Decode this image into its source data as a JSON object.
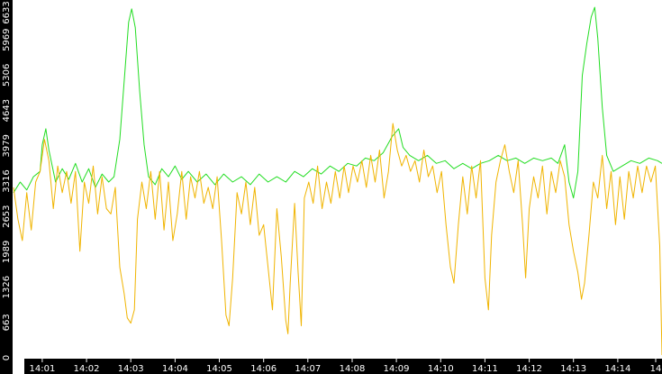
{
  "chart_data": {
    "type": "line",
    "title": "",
    "xlabel": "",
    "ylabel": "",
    "ylim": [
      0,
      6633
    ],
    "y_ticks": [
      "0",
      "663",
      "1326",
      "1989",
      "2653",
      "3316",
      "3979",
      "4643",
      "5306",
      "5969",
      "6633"
    ],
    "x_ticks": [
      "14:01",
      "14:02",
      "14:03",
      "14:04",
      "14:05",
      "14:06",
      "14:07",
      "14:08",
      "14:09",
      "14:10",
      "14:11",
      "14:12",
      "14:13",
      "14:14",
      "14"
    ],
    "xlim_minutes": [
      0.35,
      15.0
    ],
    "series": [
      {
        "color": "#22dd22",
        "points": [
          [
            0.35,
            3100
          ],
          [
            0.5,
            3300
          ],
          [
            0.65,
            3150
          ],
          [
            0.8,
            3400
          ],
          [
            0.95,
            3500
          ],
          [
            1.0,
            4000
          ],
          [
            1.08,
            4300
          ],
          [
            1.15,
            3900
          ],
          [
            1.3,
            3300
          ],
          [
            1.45,
            3550
          ],
          [
            1.6,
            3350
          ],
          [
            1.75,
            3650
          ],
          [
            1.9,
            3300
          ],
          [
            2.05,
            3550
          ],
          [
            2.2,
            3200
          ],
          [
            2.35,
            3450
          ],
          [
            2.5,
            3300
          ],
          [
            2.62,
            3400
          ],
          [
            2.75,
            4100
          ],
          [
            2.85,
            5200
          ],
          [
            2.95,
            6300
          ],
          [
            3.02,
            6550
          ],
          [
            3.1,
            6200
          ],
          [
            3.2,
            5000
          ],
          [
            3.3,
            4000
          ],
          [
            3.4,
            3400
          ],
          [
            3.55,
            3250
          ],
          [
            3.7,
            3550
          ],
          [
            3.85,
            3400
          ],
          [
            4.0,
            3600
          ],
          [
            4.15,
            3350
          ],
          [
            4.3,
            3500
          ],
          [
            4.5,
            3300
          ],
          [
            4.7,
            3450
          ],
          [
            4.9,
            3250
          ],
          [
            5.1,
            3450
          ],
          [
            5.3,
            3300
          ],
          [
            5.5,
            3400
          ],
          [
            5.7,
            3250
          ],
          [
            5.9,
            3450
          ],
          [
            6.1,
            3300
          ],
          [
            6.3,
            3400
          ],
          [
            6.5,
            3300
          ],
          [
            6.7,
            3500
          ],
          [
            6.9,
            3400
          ],
          [
            7.1,
            3550
          ],
          [
            7.3,
            3450
          ],
          [
            7.5,
            3600
          ],
          [
            7.7,
            3500
          ],
          [
            7.9,
            3650
          ],
          [
            8.1,
            3600
          ],
          [
            8.3,
            3750
          ],
          [
            8.5,
            3700
          ],
          [
            8.7,
            3850
          ],
          [
            8.9,
            4150
          ],
          [
            9.05,
            4300
          ],
          [
            9.15,
            3950
          ],
          [
            9.3,
            3800
          ],
          [
            9.5,
            3700
          ],
          [
            9.7,
            3800
          ],
          [
            9.9,
            3650
          ],
          [
            10.1,
            3700
          ],
          [
            10.3,
            3550
          ],
          [
            10.5,
            3650
          ],
          [
            10.7,
            3550
          ],
          [
            10.9,
            3650
          ],
          [
            11.1,
            3700
          ],
          [
            11.3,
            3800
          ],
          [
            11.5,
            3700
          ],
          [
            11.7,
            3750
          ],
          [
            11.9,
            3650
          ],
          [
            12.1,
            3750
          ],
          [
            12.3,
            3700
          ],
          [
            12.5,
            3750
          ],
          [
            12.65,
            3650
          ],
          [
            12.8,
            4000
          ],
          [
            12.9,
            3300
          ],
          [
            13.0,
            3000
          ],
          [
            13.1,
            3500
          ],
          [
            13.2,
            5300
          ],
          [
            13.3,
            5900
          ],
          [
            13.4,
            6400
          ],
          [
            13.48,
            6580
          ],
          [
            13.55,
            6000
          ],
          [
            13.65,
            4700
          ],
          [
            13.75,
            3800
          ],
          [
            13.9,
            3500
          ],
          [
            14.1,
            3600
          ],
          [
            14.3,
            3700
          ],
          [
            14.5,
            3650
          ],
          [
            14.7,
            3750
          ],
          [
            14.9,
            3700
          ],
          [
            15.0,
            3650
          ]
        ]
      },
      {
        "color": "#f0b400",
        "points": [
          [
            0.35,
            3200
          ],
          [
            0.45,
            2600
          ],
          [
            0.55,
            2200
          ],
          [
            0.65,
            3100
          ],
          [
            0.75,
            2400
          ],
          [
            0.85,
            3300
          ],
          [
            0.95,
            3500
          ],
          [
            1.05,
            4100
          ],
          [
            1.15,
            3700
          ],
          [
            1.25,
            2800
          ],
          [
            1.35,
            3600
          ],
          [
            1.45,
            3100
          ],
          [
            1.55,
            3500
          ],
          [
            1.65,
            2900
          ],
          [
            1.75,
            3500
          ],
          [
            1.85,
            2000
          ],
          [
            1.95,
            3300
          ],
          [
            2.05,
            2900
          ],
          [
            2.15,
            3600
          ],
          [
            2.25,
            2700
          ],
          [
            2.35,
            3400
          ],
          [
            2.45,
            2800
          ],
          [
            2.55,
            2700
          ],
          [
            2.65,
            3200
          ],
          [
            2.75,
            1700
          ],
          [
            2.85,
            1200
          ],
          [
            2.92,
            750
          ],
          [
            3.0,
            650
          ],
          [
            3.08,
            900
          ],
          [
            3.15,
            2600
          ],
          [
            3.25,
            3300
          ],
          [
            3.35,
            2800
          ],
          [
            3.45,
            3500
          ],
          [
            3.55,
            2600
          ],
          [
            3.65,
            3500
          ],
          [
            3.75,
            2400
          ],
          [
            3.85,
            3300
          ],
          [
            3.95,
            2200
          ],
          [
            4.05,
            2700
          ],
          [
            4.15,
            3500
          ],
          [
            4.25,
            2600
          ],
          [
            4.35,
            3400
          ],
          [
            4.45,
            3000
          ],
          [
            4.55,
            3500
          ],
          [
            4.65,
            2900
          ],
          [
            4.75,
            3200
          ],
          [
            4.85,
            2800
          ],
          [
            4.95,
            3400
          ],
          [
            5.05,
            2200
          ],
          [
            5.15,
            800
          ],
          [
            5.22,
            600
          ],
          [
            5.3,
            1500
          ],
          [
            5.4,
            3100
          ],
          [
            5.5,
            2700
          ],
          [
            5.6,
            3300
          ],
          [
            5.7,
            2500
          ],
          [
            5.8,
            3200
          ],
          [
            5.9,
            2300
          ],
          [
            6.0,
            2500
          ],
          [
            6.1,
            1700
          ],
          [
            6.2,
            900
          ],
          [
            6.3,
            2800
          ],
          [
            6.4,
            1900
          ],
          [
            6.5,
            700
          ],
          [
            6.55,
            450
          ],
          [
            6.6,
            1400
          ],
          [
            6.7,
            2900
          ],
          [
            6.78,
            1600
          ],
          [
            6.85,
            600
          ],
          [
            6.92,
            3000
          ],
          [
            7.02,
            3300
          ],
          [
            7.12,
            2900
          ],
          [
            7.22,
            3600
          ],
          [
            7.32,
            2800
          ],
          [
            7.42,
            3300
          ],
          [
            7.52,
            2900
          ],
          [
            7.62,
            3500
          ],
          [
            7.72,
            3000
          ],
          [
            7.82,
            3600
          ],
          [
            7.92,
            3100
          ],
          [
            8.02,
            3600
          ],
          [
            8.12,
            3300
          ],
          [
            8.22,
            3700
          ],
          [
            8.32,
            3200
          ],
          [
            8.42,
            3800
          ],
          [
            8.52,
            3300
          ],
          [
            8.62,
            3900
          ],
          [
            8.72,
            3000
          ],
          [
            8.82,
            3500
          ],
          [
            8.92,
            4400
          ],
          [
            9.02,
            3900
          ],
          [
            9.12,
            3600
          ],
          [
            9.22,
            3800
          ],
          [
            9.32,
            3500
          ],
          [
            9.42,
            3700
          ],
          [
            9.52,
            3300
          ],
          [
            9.62,
            3900
          ],
          [
            9.72,
            3400
          ],
          [
            9.82,
            3600
          ],
          [
            9.92,
            3100
          ],
          [
            10.02,
            3500
          ],
          [
            10.12,
            2500
          ],
          [
            10.22,
            1700
          ],
          [
            10.3,
            1400
          ],
          [
            10.4,
            2500
          ],
          [
            10.5,
            3400
          ],
          [
            10.6,
            2700
          ],
          [
            10.7,
            3600
          ],
          [
            10.8,
            3000
          ],
          [
            10.9,
            3700
          ],
          [
            11.0,
            1500
          ],
          [
            11.08,
            900
          ],
          [
            11.15,
            2300
          ],
          [
            11.25,
            3300
          ],
          [
            11.35,
            3700
          ],
          [
            11.45,
            4000
          ],
          [
            11.55,
            3500
          ],
          [
            11.65,
            3100
          ],
          [
            11.75,
            3700
          ],
          [
            11.85,
            2500
          ],
          [
            11.92,
            1500
          ],
          [
            12.0,
            2800
          ],
          [
            12.1,
            3400
          ],
          [
            12.2,
            3000
          ],
          [
            12.3,
            3600
          ],
          [
            12.4,
            2700
          ],
          [
            12.5,
            3500
          ],
          [
            12.6,
            3100
          ],
          [
            12.7,
            3700
          ],
          [
            12.8,
            3400
          ],
          [
            12.9,
            2500
          ],
          [
            13.0,
            2000
          ],
          [
            13.1,
            1600
          ],
          [
            13.18,
            1100
          ],
          [
            13.25,
            1400
          ],
          [
            13.35,
            2300
          ],
          [
            13.45,
            3300
          ],
          [
            13.55,
            3000
          ],
          [
            13.65,
            3800
          ],
          [
            13.75,
            2800
          ],
          [
            13.85,
            3500
          ],
          [
            13.95,
            2500
          ],
          [
            14.05,
            3400
          ],
          [
            14.15,
            2600
          ],
          [
            14.25,
            3500
          ],
          [
            14.35,
            3000
          ],
          [
            14.45,
            3600
          ],
          [
            14.55,
            3100
          ],
          [
            14.65,
            3600
          ],
          [
            14.75,
            3300
          ],
          [
            14.85,
            3600
          ],
          [
            14.95,
            2100
          ],
          [
            15.0,
            50
          ]
        ]
      }
    ]
  }
}
